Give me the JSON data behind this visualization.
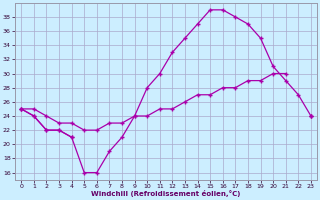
{
  "xlabel": "Windchill (Refroidissement éolien,°C)",
  "x": [
    0,
    1,
    2,
    3,
    4,
    5,
    6,
    7,
    8,
    9,
    10,
    11,
    12,
    13,
    14,
    15,
    16,
    17,
    18,
    19,
    20,
    21,
    22,
    23
  ],
  "line_top": [
    25,
    24,
    22,
    22,
    21,
    16,
    16,
    19,
    21,
    24,
    28,
    30,
    33,
    35,
    37,
    39,
    39,
    38,
    37,
    35,
    31,
    29,
    27,
    24
  ],
  "line_mid": [
    25,
    25,
    24,
    23,
    23,
    22,
    22,
    23,
    23,
    24,
    24,
    25,
    25,
    26,
    27,
    27,
    28,
    28,
    29,
    29,
    30,
    30,
    null,
    24
  ],
  "line_bot": [
    25,
    24,
    22,
    22,
    21,
    null,
    null,
    null,
    null,
    null,
    null,
    null,
    null,
    null,
    null,
    null,
    null,
    null,
    null,
    null,
    null,
    null,
    null,
    24
  ],
  "line_color": "#aa00aa",
  "bg_color": "#cceeff",
  "grid_color": "#aaaacc",
  "ylim": [
    15,
    40
  ],
  "xlim": [
    -0.5,
    23.5
  ],
  "yticks": [
    16,
    18,
    20,
    22,
    24,
    26,
    28,
    30,
    32,
    34,
    36,
    38
  ],
  "xticks": [
    0,
    1,
    2,
    3,
    4,
    5,
    6,
    7,
    8,
    9,
    10,
    11,
    12,
    13,
    14,
    15,
    16,
    17,
    18,
    19,
    20,
    21,
    22,
    23
  ]
}
